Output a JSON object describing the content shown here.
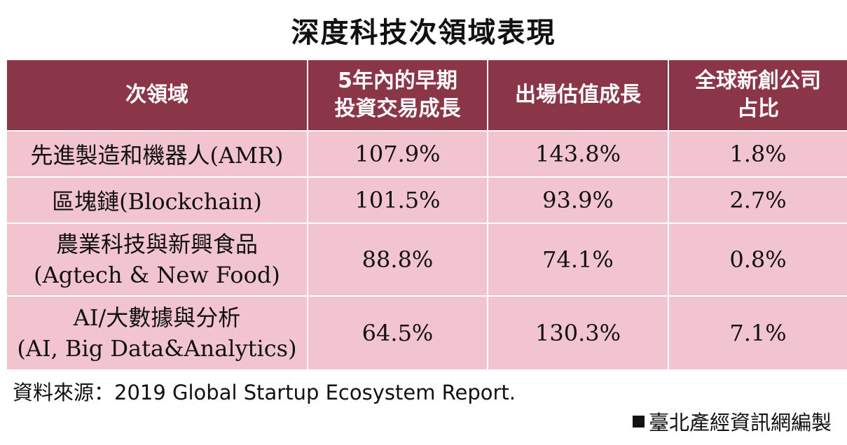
{
  "title": "深度科技次領域表現",
  "colors": {
    "header_bg": "#8b3549",
    "cell_bg": "#f2c4d0",
    "border": "#ffffff",
    "text": "#111111",
    "header_text": "#ffffff"
  },
  "chart_data": {
    "type": "table",
    "title": "深度科技次領域表現",
    "columns": [
      [
        "次領域"
      ],
      [
        "5年內的早期",
        "投資交易成長"
      ],
      [
        "出場估值成長"
      ],
      [
        "全球新創公司",
        "占比"
      ]
    ],
    "rows": [
      {
        "label": [
          "先進製造和機器人(AMR)"
        ],
        "values": [
          "107.9%",
          "143.8%",
          "1.8%"
        ]
      },
      {
        "label": [
          "區塊鏈(Blockchain)"
        ],
        "values": [
          "101.5%",
          "93.9%",
          "2.7%"
        ]
      },
      {
        "label": [
          "農業科技與新興食品",
          "(Agtech & New Food)"
        ],
        "values": [
          "88.8%",
          "74.1%",
          "0.8%"
        ]
      },
      {
        "label": [
          "AI/大數據與分析",
          "(AI, Big Data&Analytics)"
        ],
        "values": [
          "64.5%",
          "130.3%",
          "7.1%"
        ]
      }
    ]
  },
  "footer": {
    "source": "資料來源：2019 Global Startup Ecosystem Report.",
    "credit": "臺北產經資訊網編製"
  }
}
